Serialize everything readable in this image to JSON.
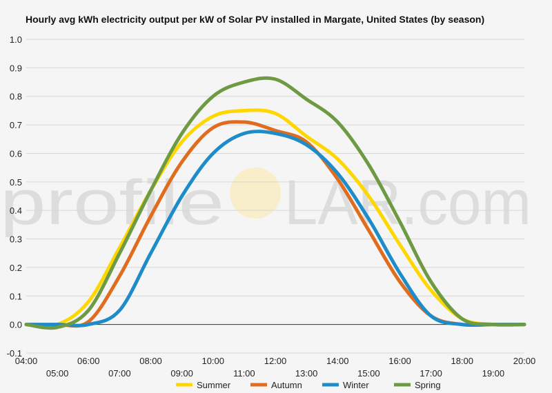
{
  "chart_data": {
    "type": "line",
    "title": "Hourly avg kWh electricity output per kW of Solar PV installed in Margate, United States (by season)",
    "watermark": {
      "left": "profile",
      "right": "LAR.com"
    },
    "xlabel": "",
    "ylabel": "",
    "x_ticks_upper": [
      "04:00",
      "06:00",
      "08:00",
      "10:00",
      "12:00",
      "14:00",
      "16:00",
      "18:00",
      "20:00"
    ],
    "x_ticks_lower": [
      "05:00",
      "07:00",
      "09:00",
      "11:00",
      "13:00",
      "15:00",
      "17:00",
      "19:00"
    ],
    "x": [
      4,
      5,
      6,
      7,
      8,
      9,
      10,
      11,
      12,
      13,
      14,
      15,
      16,
      17,
      18,
      19,
      20
    ],
    "ylim": [
      -0.1,
      1.0
    ],
    "yticks": [
      "1.0",
      "0.9",
      "0.8",
      "0.7",
      "0.6",
      "0.5",
      "0.4",
      "0.3",
      "0.2",
      "0.1",
      "0.0",
      "-0.1"
    ],
    "grid": true,
    "legend_position": "bottom",
    "series": [
      {
        "name": "Summer",
        "color": "#ffd700",
        "values": [
          0.0,
          0.0,
          0.08,
          0.27,
          0.47,
          0.64,
          0.73,
          0.75,
          0.74,
          0.66,
          0.58,
          0.45,
          0.28,
          0.12,
          0.02,
          0.0,
          0.0
        ]
      },
      {
        "name": "Autumn",
        "color": "#e06c1f",
        "values": [
          0.0,
          0.0,
          0.01,
          0.17,
          0.38,
          0.57,
          0.69,
          0.71,
          0.68,
          0.64,
          0.51,
          0.33,
          0.15,
          0.03,
          0.0,
          0.0,
          0.0
        ]
      },
      {
        "name": "Winter",
        "color": "#1e8cc8",
        "values": [
          0.0,
          0.0,
          0.0,
          0.05,
          0.25,
          0.45,
          0.6,
          0.67,
          0.67,
          0.63,
          0.53,
          0.37,
          0.18,
          0.03,
          0.0,
          0.0,
          0.0
        ]
      },
      {
        "name": "Spring",
        "color": "#6e9a44",
        "values": [
          0.0,
          -0.01,
          0.05,
          0.25,
          0.47,
          0.67,
          0.8,
          0.85,
          0.86,
          0.79,
          0.71,
          0.56,
          0.36,
          0.15,
          0.02,
          0.0,
          0.0
        ]
      }
    ]
  }
}
